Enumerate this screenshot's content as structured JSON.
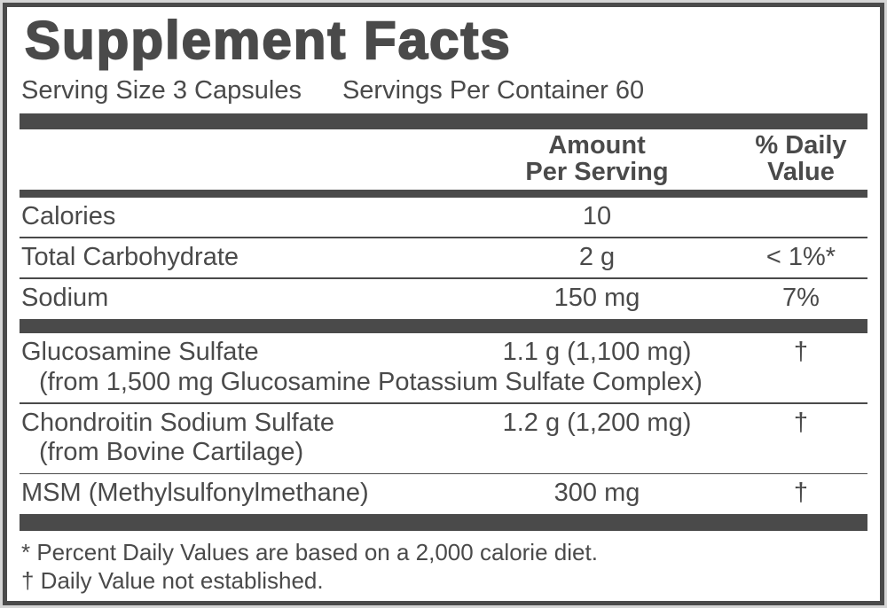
{
  "label": {
    "title": "Supplement Facts",
    "serving": {
      "size": "Serving Size 3 Capsules",
      "per_container": "Servings Per Container 60"
    },
    "columns": {
      "amount_line1": "Amount",
      "amount_line2": "Per Serving",
      "daily_value_line1": "% Daily",
      "daily_value_line2": "Value"
    },
    "rows": [
      {
        "name": "Calories",
        "amount": "10",
        "dv": ""
      },
      {
        "name": "Total Carbohydrate",
        "amount": "2 g",
        "dv": "< 1%*"
      },
      {
        "name": "Sodium",
        "amount": "150 mg",
        "dv": "7%"
      },
      {
        "name": "Glucosamine Sulfate",
        "sub": "(from 1,500 mg Glucosamine Potassium Sulfate Complex)",
        "amount": "1.1 g (1,100 mg)",
        "dv": "†"
      },
      {
        "name": "Chondroitin Sodium Sulfate",
        "sub": "(from Bovine Cartilage)",
        "amount": "1.2 g (1,200 mg)",
        "dv": "†"
      },
      {
        "name": "MSM (Methylsulfonylmethane)",
        "amount": "300 mg",
        "dv": "†"
      }
    ],
    "footnotes": [
      "* Percent Daily Values are based on a 2,000 calorie diet.",
      "† Daily Value not established."
    ],
    "colors": {
      "ink": "#4a4a4a",
      "panel_background": "#ffffff",
      "page_background": "#d5d5d5",
      "border": "#4a4a4a"
    }
  }
}
